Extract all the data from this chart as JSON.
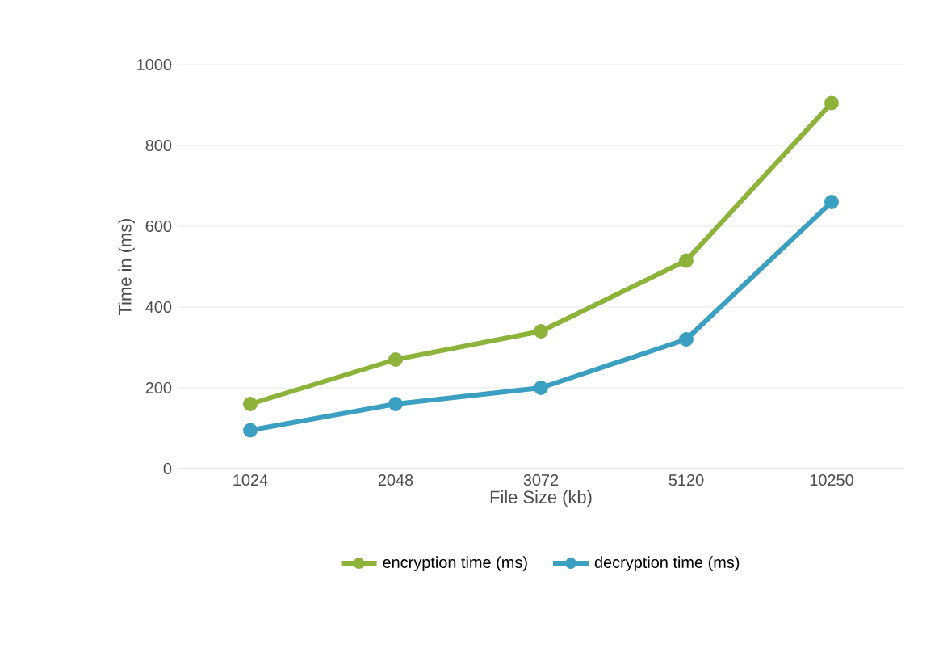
{
  "chart_data": {
    "type": "line",
    "xlabel": "File Size (kb)",
    "ylabel": "Time in (ms)",
    "categories": [
      "1024",
      "2048",
      "3072",
      "5120",
      "10250"
    ],
    "series": [
      {
        "name": "encryption time (ms)",
        "color": "#8db33a",
        "values": [
          160,
          270,
          340,
          515,
          905
        ]
      },
      {
        "name": "decryption time (ms)",
        "color": "#3a9fc0",
        "values": [
          95,
          160,
          200,
          320,
          660
        ]
      }
    ],
    "ylim": [
      0,
      1000
    ],
    "yticks": [
      0,
      200,
      400,
      600,
      800,
      1000
    ],
    "grid": "y",
    "legend": "bottom",
    "marker": "circle",
    "line_style": "solid"
  }
}
